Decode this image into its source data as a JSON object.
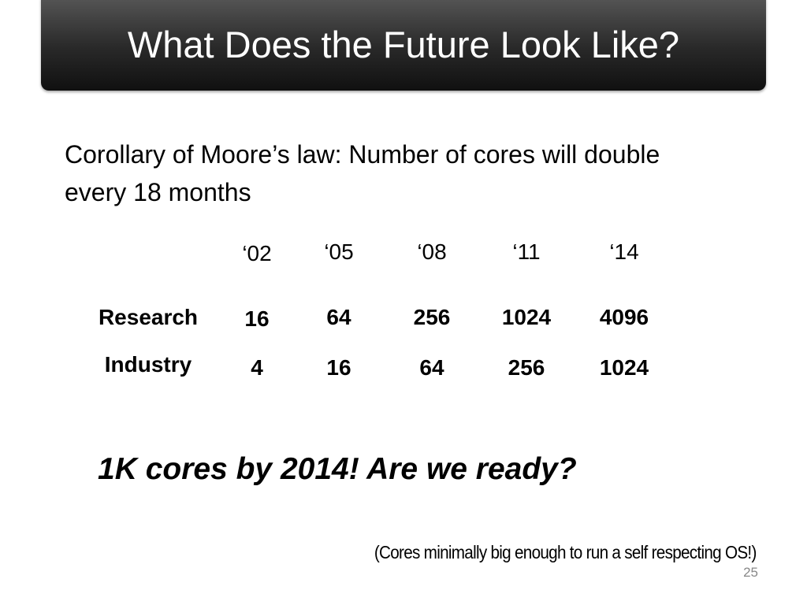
{
  "header": {
    "title": "What Does the Future Look Like?"
  },
  "body": {
    "text": "Corollary of Moore’s law: Number of cores will double every 18 months"
  },
  "table": {
    "columns": [
      "‘02",
      "‘05",
      "‘08",
      "‘11",
      "‘14"
    ],
    "rows": [
      {
        "label": "Research",
        "values": [
          16,
          64,
          256,
          1024,
          4096
        ]
      },
      {
        "label": "Industry",
        "values": [
          4,
          16,
          64,
          256,
          1024
        ]
      }
    ]
  },
  "emphasis": "1K cores by 2014! Are we ready?",
  "footnote": "(Cores minimally big enough to run a self respecting OS!)",
  "page_number": 25
}
